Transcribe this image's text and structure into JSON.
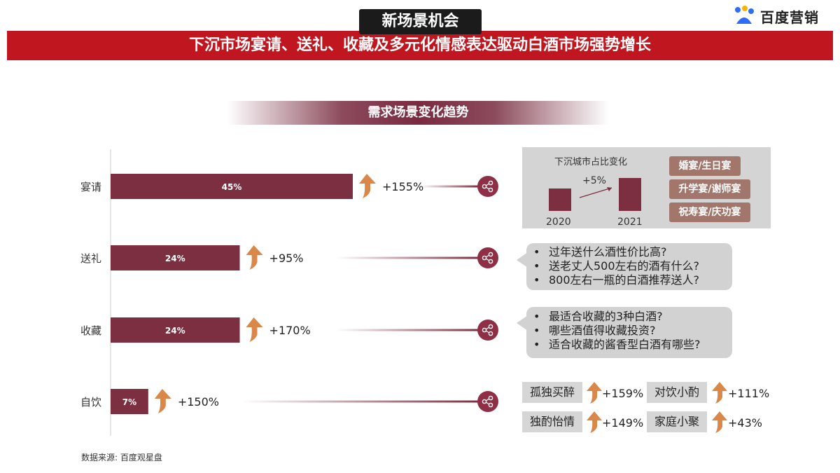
{
  "header": {
    "tag": "新场景机会",
    "headline": "下沉市场宴请、送礼、收藏及多元化情感表达驱动白酒市场强势增长",
    "brand": "百度营销"
  },
  "section_title": "需求场景变化趋势",
  "chart_data": {
    "type": "bar",
    "orientation": "horizontal",
    "title": "需求场景变化趋势",
    "categories": [
      "宴请",
      "送礼",
      "收藏",
      "自饮"
    ],
    "values": [
      45,
      24,
      24,
      7
    ],
    "value_labels": [
      "45%",
      "24%",
      "24%",
      "7%"
    ],
    "growth_labels": [
      "+155%",
      "+95%",
      "+170%",
      "+150%"
    ],
    "xlim": [
      0,
      100
    ],
    "bar_color": "#7d2f42",
    "arrow_color": "#d9884a"
  },
  "city_panel": {
    "title": "下沉城市占比变化",
    "chart_data": {
      "type": "bar",
      "categories": [
        "2020",
        "2021"
      ],
      "change_label": "+5%"
    },
    "tags": [
      "婚宴/生日宴",
      "升学宴/谢师宴",
      "祝寿宴/庆功宴"
    ]
  },
  "gift_questions": [
    "过年送什么酒性价比高?",
    "送老丈人500左右的酒有什么?",
    "800左右一瓶的白酒推荐送人?"
  ],
  "collect_questions": [
    "最适合收藏的3种白酒?",
    "哪些酒值得收藏投资?",
    "适合收藏的酱香型白酒有哪些?"
  ],
  "self_drink": [
    {
      "label": "孤独买醉",
      "value": "+159%"
    },
    {
      "label": "对饮小酌",
      "value": "+111%"
    },
    {
      "label": "独酌怡情",
      "value": "+149%"
    },
    {
      "label": "家庭小聚",
      "value": "+43%"
    }
  ],
  "source": "数据来源: 百度观星盘",
  "colors": {
    "banner": "#c0161f",
    "bar": "#7d2f42",
    "arrow": "#d9884a",
    "tag_box": "#a3766c",
    "panel_grey": "#d4d4d4"
  },
  "icons": [
    "share-icon",
    "growth-arrow-icon",
    "trend-arrow-icon"
  ]
}
